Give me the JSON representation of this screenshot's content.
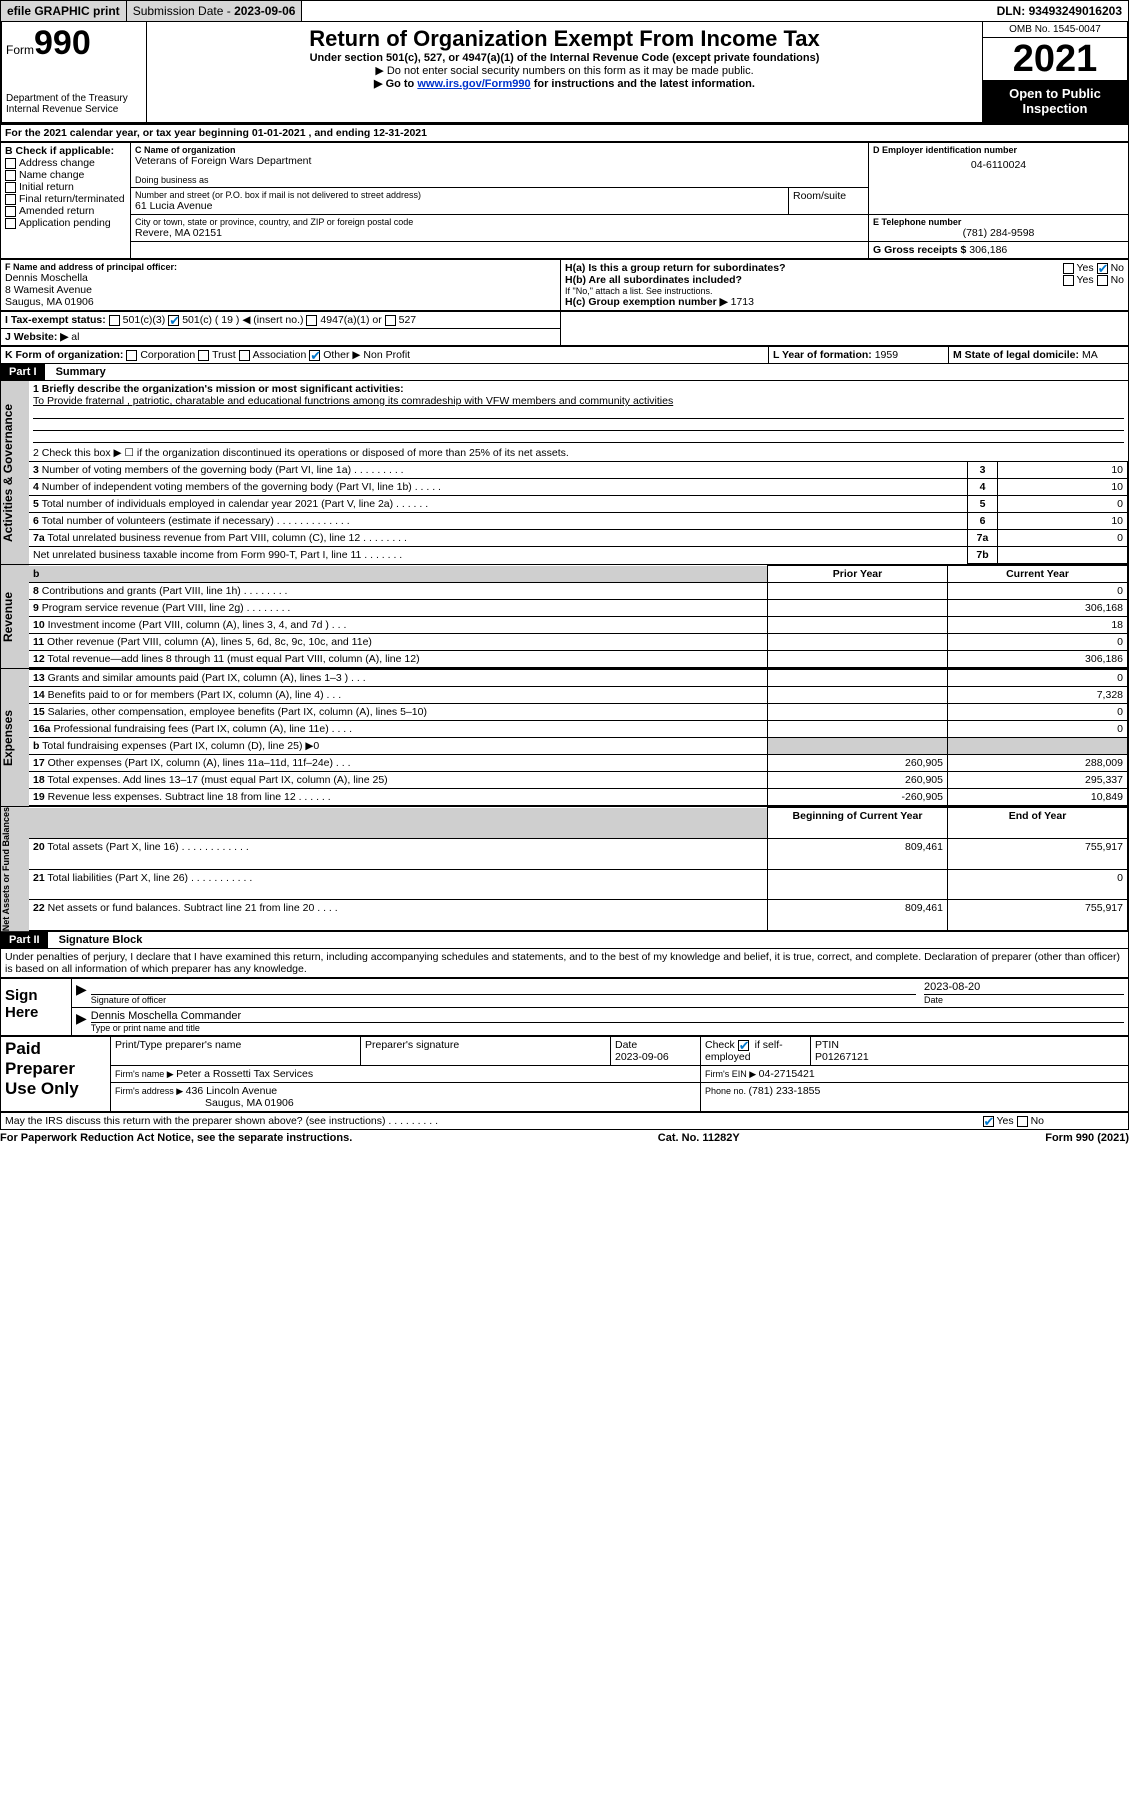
{
  "topbar": {
    "efile": "efile GRAPHIC print",
    "submission_label": "Submission Date - ",
    "submission_date": "2023-09-06",
    "dln_label": "DLN: ",
    "dln": "93493249016203"
  },
  "header": {
    "form_label": "Form",
    "form_num": "990",
    "dept": "Department of the Treasury",
    "irs": "Internal Revenue Service",
    "title": "Return of Organization Exempt From Income Tax",
    "subtitle": "Under section 501(c), 527, or 4947(a)(1) of the Internal Revenue Code (except private foundations)",
    "notice1": "▶ Do not enter social security numbers on this form as it may be made public.",
    "notice2_pre": "▶ Go to ",
    "notice2_link": "www.irs.gov/Form990",
    "notice2_post": " for instructions and the latest information.",
    "omb": "OMB No. 1545-0047",
    "year": "2021",
    "open": "Open to Public Inspection"
  },
  "A": {
    "text": "For the 2021 calendar year, or tax year beginning ",
    "begin": "01-01-2021",
    "mid": " , and ending ",
    "end": "12-31-2021"
  },
  "B": {
    "label": "B Check if applicable:",
    "items": [
      "Address change",
      "Name change",
      "Initial return",
      "Final return/terminated",
      "Amended return",
      "Application pending"
    ]
  },
  "C": {
    "name_label": "C Name of organization",
    "name": "Veterans of Foreign Wars Department",
    "dba_label": "Doing business as",
    "addr_label": "Number and street (or P.O. box if mail is not delivered to street address)",
    "addr": "61 Lucia Avenue",
    "room_label": "Room/suite",
    "city_label": "City or town, state or province, country, and ZIP or foreign postal code",
    "city": "Revere, MA  02151"
  },
  "D": {
    "label": "D Employer identification number",
    "value": "04-6110024"
  },
  "E": {
    "label": "E Telephone number",
    "value": "(781) 284-9598"
  },
  "G": {
    "label": "G Gross receipts $ ",
    "value": "306,186"
  },
  "F": {
    "label": "F Name and address of principal officer:",
    "name": "Dennis Moschella",
    "addr1": "8 Wamesit Avenue",
    "addr2": "Saugus, MA  01906"
  },
  "H": {
    "a_label": "H(a)  Is this a group return for subordinates?",
    "a_yes": "Yes",
    "a_no": "No",
    "b_label": "H(b)  Are all subordinates included?",
    "b_note": "If \"No,\" attach a list. See instructions.",
    "c_label": "H(c)  Group exemption number ▶ ",
    "c_value": "1713"
  },
  "I": {
    "label": "I  Tax-exempt status:",
    "o1": "501(c)(3)",
    "o2_pre": "501(c) ( ",
    "o2_num": "19",
    "o2_post": " ) ◀ (insert no.)",
    "o3": "4947(a)(1) or",
    "o4": "527"
  },
  "J": {
    "label": "J  Website: ▶ ",
    "value": "al"
  },
  "K": {
    "label": "K Form of organization:",
    "o1": "Corporation",
    "o2": "Trust",
    "o3": "Association",
    "o4": "Other ▶ ",
    "other_val": "Non Profit"
  },
  "L": {
    "label": "L Year of formation: ",
    "value": "1959"
  },
  "M": {
    "label": "M State of legal domicile: ",
    "value": "MA"
  },
  "part1": {
    "hdr": "Part I",
    "title": "Summary",
    "q1_label": "1  Briefly describe the organization's mission or most significant activities:",
    "q1_text": "To Provide fraternal , patriotic, charatable and educational functrions among its comradeship with VFW members and community activities",
    "q2": "2   Check this box ▶ ☐  if the organization discontinued its operations or disposed of more than 25% of its net assets.",
    "sections": {
      "gov": "Activities & Governance",
      "rev": "Revenue",
      "exp": "Expenses",
      "net": "Net Assets or Fund Balances"
    },
    "rows_gov": [
      {
        "n": "3",
        "t": "Number of voting members of the governing body (Part VI, line 1a)  .   .   .   .   .   .   .   .   .",
        "box": "3",
        "v": "10"
      },
      {
        "n": "4",
        "t": "Number of independent voting members of the governing body (Part VI, line 1b)  .   .   .   .   .",
        "box": "4",
        "v": "10"
      },
      {
        "n": "5",
        "t": "Total number of individuals employed in calendar year 2021 (Part V, line 2a)  .   .   .   .   .   .",
        "box": "5",
        "v": "0"
      },
      {
        "n": "6",
        "t": "Total number of volunteers (estimate if necessary)  .   .   .   .   .   .   .   .   .   .   .   .   .",
        "box": "6",
        "v": "10"
      },
      {
        "n": "7a",
        "t": "Total unrelated business revenue from Part VIII, column (C), line 12  .   .   .   .   .   .   .   .",
        "box": "7a",
        "v": "0"
      },
      {
        "n": "",
        "t": "Net unrelated business taxable income from Form 990-T, Part I, line 11  .   .   .   .   .   .   .",
        "box": "7b",
        "v": ""
      }
    ],
    "col_prior": "Prior Year",
    "col_current": "Current Year",
    "rows_rev": [
      {
        "n": "8",
        "t": "Contributions and grants (Part VIII, line 1h)   .   .   .   .   .   .   .   .",
        "p": "",
        "c": "0"
      },
      {
        "n": "9",
        "t": "Program service revenue (Part VIII, line 2g)   .   .   .   .   .   .   .   .",
        "p": "",
        "c": "306,168"
      },
      {
        "n": "10",
        "t": "Investment income (Part VIII, column (A), lines 3, 4, and 7d )   .   .   .",
        "p": "",
        "c": "18"
      },
      {
        "n": "11",
        "t": "Other revenue (Part VIII, column (A), lines 5, 6d, 8c, 9c, 10c, and 11e)",
        "p": "",
        "c": "0"
      },
      {
        "n": "12",
        "t": "Total revenue—add lines 8 through 11 (must equal Part VIII, column (A), line 12)",
        "p": "",
        "c": "306,186"
      }
    ],
    "rows_exp": [
      {
        "n": "13",
        "t": "Grants and similar amounts paid (Part IX, column (A), lines 1–3 )   .   .   .",
        "p": "",
        "c": "0"
      },
      {
        "n": "14",
        "t": "Benefits paid to or for members (Part IX, column (A), line 4)   .   .   .",
        "p": "",
        "c": "7,328"
      },
      {
        "n": "15",
        "t": "Salaries, other compensation, employee benefits (Part IX, column (A), lines 5–10)",
        "p": "",
        "c": "0"
      },
      {
        "n": "16a",
        "t": "Professional fundraising fees (Part IX, column (A), line 11e)   .   .   .   .",
        "p": "",
        "c": "0"
      },
      {
        "n": "b",
        "t": "Total fundraising expenses (Part IX, column (D), line 25) ▶0",
        "p": "grey",
        "c": "grey"
      },
      {
        "n": "17",
        "t": "Other expenses (Part IX, column (A), lines 11a–11d, 11f–24e)   .   .   .",
        "p": "260,905",
        "c": "288,009"
      },
      {
        "n": "18",
        "t": "Total expenses. Add lines 13–17 (must equal Part IX, column (A), line 25)",
        "p": "260,905",
        "c": "295,337"
      },
      {
        "n": "19",
        "t": "Revenue less expenses. Subtract line 18 from line 12   .   .   .   .   .   .",
        "p": "-260,905",
        "c": "10,849"
      }
    ],
    "col_begin": "Beginning of Current Year",
    "col_end": "End of Year",
    "rows_net": [
      {
        "n": "20",
        "t": "Total assets (Part X, line 16)  .   .   .   .   .   .   .   .   .   .   .   .",
        "p": "809,461",
        "c": "755,917"
      },
      {
        "n": "21",
        "t": "Total liabilities (Part X, line 26)  .   .   .   .   .   .   .   .   .   .   .",
        "p": "",
        "c": "0"
      },
      {
        "n": "22",
        "t": "Net assets or fund balances. Subtract line 21 from line 20   .   .   .   .",
        "p": "809,461",
        "c": "755,917"
      }
    ]
  },
  "part2": {
    "hdr": "Part II",
    "title": "Signature Block",
    "decl": "Under penalties of perjury, I declare that I have examined this return, including accompanying schedules and statements, and to the best of my knowledge and belief, it is true, correct, and complete. Declaration of preparer (other than officer) is based on all information of which preparer has any knowledge.",
    "sign_here": "Sign Here",
    "sig_officer": "Signature of officer",
    "date": "Date",
    "sig_date": "2023-08-20",
    "name_title": "Dennis Moschella  Commander",
    "name_title_label": "Type or print name and title",
    "paid": "Paid Preparer Use Only",
    "prep_name_label": "Print/Type preparer's name",
    "prep_sig_label": "Preparer's signature",
    "prep_date_label": "Date",
    "prep_date": "2023-09-06",
    "check_label": "Check ☑ if self-employed",
    "ptin_label": "PTIN",
    "ptin": "P01267121",
    "firm_name_label": "Firm's name    ▶ ",
    "firm_name": "Peter a Rossetti Tax Services",
    "firm_ein_label": "Firm's EIN ▶ ",
    "firm_ein": "04-2715421",
    "firm_addr_label": "Firm's address ▶ ",
    "firm_addr": "436 Lincoln Avenue",
    "firm_city": "Saugus, MA  01906",
    "firm_phone_label": "Phone no. ",
    "firm_phone": "(781) 233-1855",
    "discuss": "May the IRS discuss this return with the preparer shown above? (see instructions)   .   .   .   .   .   .   .   .   .",
    "yes": "Yes",
    "no": "No"
  },
  "footer": {
    "pra": "For Paperwork Reduction Act Notice, see the separate instructions.",
    "cat": "Cat. No. 11282Y",
    "form": "Form 990 (2021)"
  },
  "colors": {
    "btn_bg": "#d7d7d7",
    "link": "#0033cc",
    "check": "#0077cc",
    "grey": "#cfcfcf"
  }
}
